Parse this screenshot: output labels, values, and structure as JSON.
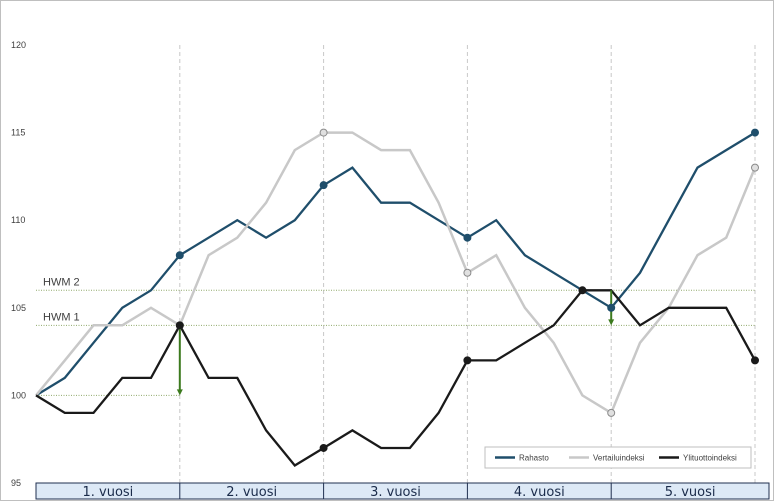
{
  "chart_data": {
    "type": "line",
    "x": [
      0,
      1,
      2,
      3,
      4,
      5,
      6,
      7,
      8,
      9,
      10,
      11,
      12,
      13,
      14,
      15,
      16,
      17,
      18,
      19,
      20,
      21,
      22,
      23,
      24,
      25
    ],
    "ylim": [
      95,
      120
    ],
    "y_ticks": [
      "95",
      "100",
      "105",
      "110",
      "115",
      "120"
    ],
    "series": [
      {
        "name": "Rahasto",
        "color": "#1f4e6b",
        "values": [
          100,
          101,
          103,
          105,
          106,
          108,
          109,
          110,
          109,
          110,
          112,
          113,
          111,
          111,
          110,
          109,
          110,
          108,
          107,
          106,
          105,
          107,
          110,
          113,
          114,
          115
        ],
        "markers": [
          5,
          10,
          15,
          20,
          25
        ]
      },
      {
        "name": "Vertailuindeksi",
        "color": "#c8c8c8",
        "values": [
          100,
          102,
          104,
          104,
          105,
          104,
          108,
          109,
          111,
          114,
          115,
          115,
          114,
          114,
          111,
          107,
          108,
          105,
          103,
          100,
          99,
          103,
          105,
          108,
          109,
          113
        ],
        "markers": [
          5,
          10,
          15,
          20,
          25
        ]
      },
      {
        "name": "Ylituottoindeksi",
        "color": "#1a1a1a",
        "values": [
          100,
          99,
          99,
          101,
          101,
          104,
          101,
          101,
          98,
          96,
          97,
          98,
          97,
          97,
          99,
          102,
          102,
          103,
          104,
          106,
          106,
          104,
          105,
          105,
          105,
          102
        ],
        "markers": [
          5,
          10,
          15,
          19,
          25
        ]
      }
    ],
    "hwm_lines": [
      {
        "label": "HWM 1",
        "value": 104
      },
      {
        "label": "HWM 2",
        "value": 106
      }
    ],
    "arrows": [
      {
        "x": 5,
        "from": 104,
        "to": 100
      },
      {
        "x": 20,
        "from": 106,
        "to": 104
      }
    ],
    "year_bands": [
      "1. vuosi",
      "2. vuosi",
      "3. vuosi",
      "4. vuosi",
      "5. vuosi"
    ],
    "legend_position": "bottom-right",
    "vertical_gridlines_dashed": true
  }
}
